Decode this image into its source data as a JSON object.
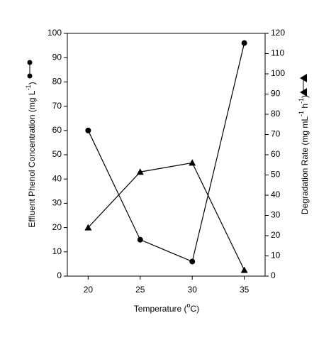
{
  "chart_data": {
    "type": "line",
    "x_label": [
      "Temperature (",
      "o",
      "C)"
    ],
    "y_label": [
      "Effluent Phenol Concentration (mg L",
      "-1",
      ")"
    ],
    "y2_label": [
      "Degradation Rate (mg mL",
      "-1",
      " h",
      "-1",
      ")"
    ],
    "x": [
      20,
      25,
      30,
      35
    ],
    "xlim": [
      18,
      37
    ],
    "xticks": [
      20,
      25,
      30,
      35
    ],
    "ylim": [
      0,
      100
    ],
    "yticks": [
      0,
      10,
      20,
      30,
      40,
      50,
      60,
      70,
      80,
      90,
      100
    ],
    "y2lim": [
      0,
      120
    ],
    "y2ticks": [
      0,
      10,
      20,
      30,
      40,
      50,
      60,
      70,
      80,
      90,
      100,
      110,
      120
    ],
    "series": [
      {
        "color": "#000000",
        "marker": "circle",
        "values": [
          60,
          15,
          6,
          96
        ]
      },
      {
        "color": "#000000",
        "marker": "triangle",
        "axis": "y2",
        "values": [
          24,
          51.5,
          56,
          3
        ]
      }
    ]
  }
}
